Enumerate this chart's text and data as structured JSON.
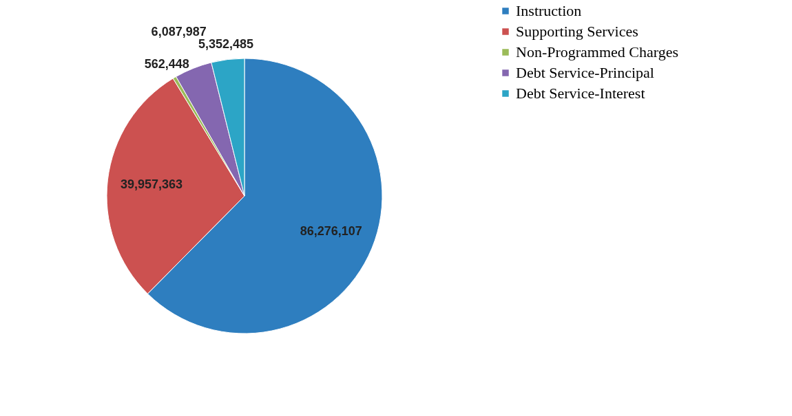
{
  "chart_data": {
    "type": "pie",
    "categories": [
      "Instruction",
      "Supporting Services",
      "Non-Programmed Charges",
      "Debt Service-Principal",
      "Debt Service-Interest"
    ],
    "values": [
      86276107,
      39957363,
      562448,
      6087987,
      5352485
    ],
    "colors": [
      "#2e7ebf",
      "#cc5150",
      "#9bbb59",
      "#8467b0",
      "#2ca5c6"
    ],
    "value_labels": [
      "86,276,107",
      "39,957,363",
      "562,448",
      "6,087,987",
      "5,352,485"
    ],
    "legend": "right"
  }
}
